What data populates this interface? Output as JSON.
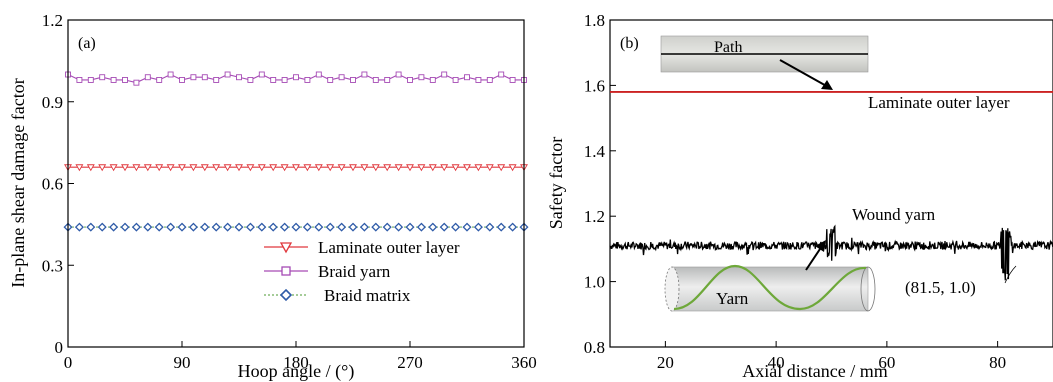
{
  "chart_data": [
    {
      "panel_label": "(a)",
      "type": "line",
      "xlabel": "Hoop angle / (°)",
      "ylabel": "In-plane shear damage factor",
      "xlim": [
        0,
        360
      ],
      "ylim": [
        0,
        1.2
      ],
      "xticks": [
        "0",
        "90",
        "180",
        "270",
        "360"
      ],
      "yticks": [
        "0",
        "0.3",
        "0.6",
        "0.9",
        "1.2"
      ],
      "x": [
        0,
        9,
        18,
        27,
        36,
        45,
        54,
        63,
        72,
        81,
        90,
        99,
        108,
        117,
        126,
        135,
        144,
        153,
        162,
        171,
        180,
        189,
        198,
        207,
        216,
        225,
        234,
        243,
        252,
        261,
        270,
        279,
        288,
        297,
        306,
        315,
        324,
        333,
        342,
        351,
        360
      ],
      "series": [
        {
          "name": "Laminate outer layer",
          "color": "#e0383e",
          "marker": "triangle-down",
          "values": [
            0.66,
            0.66,
            0.66,
            0.66,
            0.66,
            0.66,
            0.66,
            0.66,
            0.66,
            0.66,
            0.66,
            0.66,
            0.66,
            0.66,
            0.66,
            0.66,
            0.66,
            0.66,
            0.66,
            0.66,
            0.66,
            0.66,
            0.66,
            0.66,
            0.66,
            0.66,
            0.66,
            0.66,
            0.66,
            0.66,
            0.66,
            0.66,
            0.66,
            0.66,
            0.66,
            0.66,
            0.66,
            0.66,
            0.66,
            0.66,
            0.66
          ]
        },
        {
          "name": "Braid yarn",
          "color": "#a64bb5",
          "marker": "square",
          "values": [
            1.0,
            0.98,
            0.98,
            0.99,
            0.98,
            0.98,
            0.97,
            0.99,
            0.98,
            1.0,
            0.98,
            0.99,
            0.99,
            0.98,
            1.0,
            0.99,
            0.98,
            1.0,
            0.98,
            0.98,
            0.99,
            0.98,
            1.0,
            0.98,
            0.99,
            0.98,
            1.0,
            0.98,
            0.98,
            1.0,
            0.98,
            0.99,
            0.98,
            1.0,
            0.98,
            0.99,
            0.98,
            0.98,
            1.0,
            0.98,
            0.98
          ]
        },
        {
          "name": "Braid matrix",
          "color": "#2f5ba8",
          "line_color": "#6fae5a",
          "marker": "diamond",
          "values": [
            0.44,
            0.44,
            0.44,
            0.44,
            0.44,
            0.44,
            0.44,
            0.44,
            0.44,
            0.44,
            0.44,
            0.44,
            0.44,
            0.44,
            0.44,
            0.44,
            0.44,
            0.44,
            0.44,
            0.44,
            0.44,
            0.44,
            0.44,
            0.44,
            0.44,
            0.44,
            0.44,
            0.44,
            0.44,
            0.44,
            0.44,
            0.44,
            0.44,
            0.44,
            0.44,
            0.44,
            0.44,
            0.44,
            0.44,
            0.44,
            0.44
          ]
        }
      ],
      "legend": "lower-right"
    },
    {
      "panel_label": "(b)",
      "type": "line",
      "xlabel": "Axial distance / mm",
      "ylabel": "Safety factor",
      "xlim": [
        10,
        90
      ],
      "ylim": [
        0.8,
        1.8
      ],
      "xticks": [
        "20",
        "40",
        "60",
        "80"
      ],
      "yticks": [
        "0.8",
        "1.0",
        "1.2",
        "1.4",
        "1.6",
        "1.8"
      ],
      "series": [
        {
          "name": "Laminate outer layer",
          "color": "#cc2222",
          "x": [
            10,
            90
          ],
          "values": [
            1.58,
            1.58
          ]
        },
        {
          "name": "Wound yarn",
          "color": "#000000",
          "x_range": [
            10,
            90
          ],
          "baseline": 1.11,
          "noise": 0.012,
          "spikes": [
            {
              "x": 50,
              "min": 1.05,
              "max": 1.17
            },
            {
              "x": 81.5,
              "min": 1.0,
              "max": 1.17
            }
          ]
        }
      ],
      "annotations": {
        "path_label": "Path",
        "laminate_label": "Laminate outer layer",
        "wound_label": "Wound yarn",
        "yarn_label": "Yarn",
        "point_label": "(81.5, 1.0)"
      }
    }
  ]
}
